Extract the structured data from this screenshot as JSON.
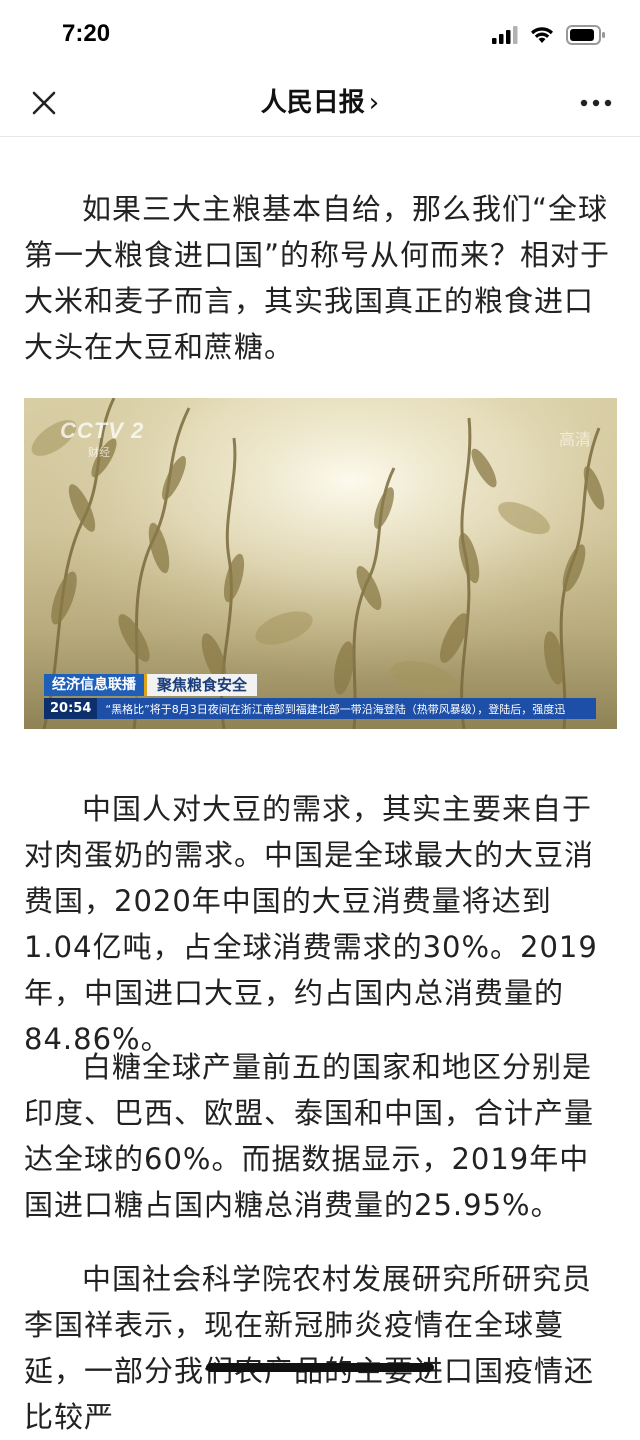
{
  "status_bar": {
    "time": "7:20",
    "icons": [
      "signal-icon",
      "wifi-icon",
      "battery-icon"
    ]
  },
  "nav": {
    "title": "人民日报",
    "title_chevron": "›",
    "icons": [
      "close-icon",
      "more-icon"
    ]
  },
  "article": {
    "paragraphs": [
      "如果三大主粮基本自给，那么我们“全球第一大粮食进口国”的称号从何而来？相对于大米和麦子而言，其实我国真正的粮食进口大头在大豆和蔗糖。",
      "中国人对大豆的需求，其实主要来自于对肉蛋奶的需求。中国是全球最大的大豆消费国，2020年中国的大豆消费量将达到1.04亿吨，占全球消费需求的30%。2019年，中国进口大豆，约占国内总消费量的84.86%。",
      "白糖全球产量前五的国家和地区分别是印度、巴西、欧盟、泰国和中国，合计产量达全球的60%。而据数据显示，2019年中国进口糖占国内糖总消费量的25.95%。",
      "中国社会科学院农村发展研究所研究员李国祥表示，现在新冠肺炎疫情在全球蔓延，一部分我们农产品的主要进口国疫情还比较严"
    ]
  },
  "video": {
    "logo": "CCTV 2",
    "logo_sub": "财经",
    "corner_mark": "高清",
    "program_label": "经济信息联播",
    "topic_label": "聚焦粮食安全",
    "ticker_time": "20:54",
    "ticker_text": "“黑格比”将于8月3日夜间在浙江南部到福建北部一带沿海登陆（热带风暴级），登陆后，强度迅"
  },
  "colors": {
    "ticker_blue": "#1d4fa8",
    "program_blue": "#1f5fb8",
    "text": "#222222"
  }
}
